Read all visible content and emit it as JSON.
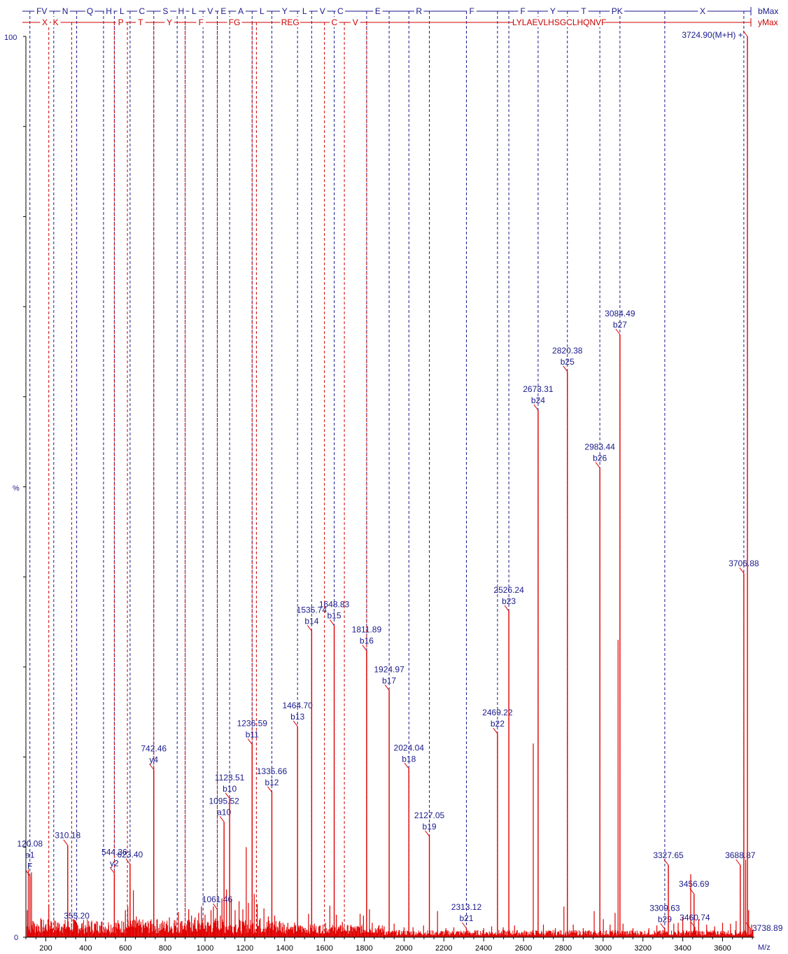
{
  "chart_data": {
    "type": "bar",
    "xlabel": "M/z",
    "ylabel": "%",
    "y_top_label": "100",
    "y_bottom_label": "0",
    "xlim": [
      100,
      3760
    ],
    "ylim": [
      0,
      100
    ],
    "x_ticks": [
      200,
      400,
      600,
      800,
      1000,
      1200,
      1400,
      1600,
      1800,
      2000,
      2200,
      2400,
      2600,
      2800,
      3000,
      3200,
      3400,
      3600
    ],
    "b_ladder": {
      "label": "bMax",
      "color": "#1a1a8c",
      "positions": [
        120.08,
        240,
        355.2,
        490,
        544.36,
        623.4,
        742.46,
        860,
        900,
        990,
        1061.46,
        1123.51,
        1236.59,
        1335.66,
        1464.7,
        1535.74,
        1648.83,
        1811.89,
        1924.97,
        2024.04,
        2127.05,
        2313.12,
        2469.22,
        2526.24,
        2673.31,
        2820.38,
        2983.44,
        3084.49,
        3309.63,
        3706.88
      ],
      "residues": [
        {
          "text": "FV",
          "x": 180
        },
        {
          "text": "N",
          "x": 297
        },
        {
          "text": "Q",
          "x": 422
        },
        {
          "text": "H",
          "x": 517
        },
        {
          "text": "L",
          "x": 583
        },
        {
          "text": "C",
          "x": 683
        },
        {
          "text": "S",
          "x": 801
        },
        {
          "text": "H",
          "x": 880
        },
        {
          "text": "L",
          "x": 945
        },
        {
          "text": "V",
          "x": 1026
        },
        {
          "text": "E",
          "x": 1093
        },
        {
          "text": "A",
          "x": 1180
        },
        {
          "text": "L",
          "x": 1286
        },
        {
          "text": "Y",
          "x": 1400
        },
        {
          "text": "L",
          "x": 1500
        },
        {
          "text": "V",
          "x": 1590
        },
        {
          "text": "C",
          "x": 1680
        },
        {
          "text": "E",
          "x": 1868
        },
        {
          "text": "R",
          "x": 2075
        },
        {
          "text": "F",
          "x": 2340
        },
        {
          "text": "F",
          "x": 2597
        },
        {
          "text": "Y",
          "x": 2747
        },
        {
          "text": "T",
          "x": 2902
        },
        {
          "text": "PK",
          "x": 3070
        },
        {
          "text": "X",
          "x": 3500
        }
      ]
    },
    "y_ladder": {
      "label": "yMax",
      "color": "#cc0000",
      "positions": [
        215,
        330,
        544.36,
        610,
        742.46,
        900,
        1061.46,
        1236.59,
        1258,
        1600,
        1700,
        1811.89
      ],
      "residues": [
        {
          "text": "X",
          "x": 195
        },
        {
          "text": "K",
          "x": 250
        },
        {
          "text": "P",
          "x": 577
        },
        {
          "text": "T",
          "x": 676
        },
        {
          "text": "Y",
          "x": 821
        },
        {
          "text": "F",
          "x": 980
        },
        {
          "text": "FG",
          "x": 1148
        },
        {
          "text": "REG",
          "x": 1428
        },
        {
          "text": "C",
          "x": 1650
        },
        {
          "text": "V",
          "x": 1755
        },
        {
          "text": "LYLAEVLHSGCLHQNVF",
          "x": 2780
        }
      ]
    },
    "labeled_peaks": [
      {
        "mz": 120.08,
        "intensity": 6.8,
        "label": "120.08",
        "ion": "a1",
        "extra": "F"
      },
      {
        "mz": 310.18,
        "intensity": 10.2,
        "label": "310.18"
      },
      {
        "mz": 355.2,
        "intensity": 1.3,
        "label": "355.20"
      },
      {
        "mz": 544.36,
        "intensity": 7.1,
        "label": "544.36",
        "ion": "y2"
      },
      {
        "mz": 623.4,
        "intensity": 8.1,
        "label": "623.40"
      },
      {
        "mz": 742.46,
        "intensity": 18.6,
        "label": "742.46",
        "ion": "y4"
      },
      {
        "mz": 1061.46,
        "intensity": 3.1,
        "label": "1061.46"
      },
      {
        "mz": 1095.52,
        "intensity": 12.8,
        "label": "1095.52",
        "ion": "a10"
      },
      {
        "mz": 1123.51,
        "intensity": 15.4,
        "label": "1123.51",
        "ion": "b10"
      },
      {
        "mz": 1236.59,
        "intensity": 21.4,
        "label": "1236.59",
        "ion": "b11"
      },
      {
        "mz": 1335.66,
        "intensity": 16.1,
        "label": "1335.66",
        "ion": "b12"
      },
      {
        "mz": 1464.7,
        "intensity": 23.4,
        "label": "1464.70",
        "ion": "b13"
      },
      {
        "mz": 1535.74,
        "intensity": 34.0,
        "label": "1535.74",
        "ion": "b14"
      },
      {
        "mz": 1648.83,
        "intensity": 34.6,
        "label": "1648.83",
        "ion": "b15"
      },
      {
        "mz": 1811.89,
        "intensity": 31.8,
        "label": "1811.89",
        "ion": "b16"
      },
      {
        "mz": 1924.97,
        "intensity": 27.4,
        "label": "1924.97",
        "ion": "b17"
      },
      {
        "mz": 2024.04,
        "intensity": 18.7,
        "label": "2024.04",
        "ion": "b18"
      },
      {
        "mz": 2127.05,
        "intensity": 11.2,
        "label": "2127.05",
        "ion": "b19"
      },
      {
        "mz": 2313.12,
        "intensity": 1.0,
        "label": "2313.12",
        "ion": "b21"
      },
      {
        "mz": 2469.22,
        "intensity": 22.6,
        "label": "2469.22",
        "ion": "b22"
      },
      {
        "mz": 2526.24,
        "intensity": 36.2,
        "label": "2526.24",
        "ion": "b23"
      },
      {
        "mz": 2673.31,
        "intensity": 58.5,
        "label": "2673.31",
        "ion": "b24"
      },
      {
        "mz": 2820.38,
        "intensity": 62.8,
        "label": "2820.38",
        "ion": "b25"
      },
      {
        "mz": 2983.44,
        "intensity": 52.1,
        "label": "2983.44",
        "ion": "b26"
      },
      {
        "mz": 3084.49,
        "intensity": 66.9,
        "label": "3084.49",
        "ion": "b27"
      },
      {
        "mz": 3309.63,
        "intensity": 0.9,
        "label": "3309.63",
        "ion": "b29"
      },
      {
        "mz": 3327.65,
        "intensity": 8.0,
        "label": "3327.65"
      },
      {
        "mz": 3456.69,
        "intensity": 4.8,
        "label": "3456.69"
      },
      {
        "mz": 3460.74,
        "intensity": 1.1,
        "label": "3460.74"
      },
      {
        "mz": 3688.87,
        "intensity": 8.0,
        "label": "3688.87"
      },
      {
        "mz": 3706.88,
        "intensity": 40.4,
        "label": "3706.88"
      },
      {
        "mz": 3724.9,
        "intensity": 100,
        "label": "3724.90(M+H) +"
      },
      {
        "mz": 3738.89,
        "intensity": 1.0,
        "label": "3738.89"
      }
    ],
    "other_peaks": [
      [
        107,
        3
      ],
      [
        112,
        7.5
      ],
      [
        128,
        7.2
      ],
      [
        135,
        1.8
      ],
      [
        152,
        1.2
      ],
      [
        175,
        2.1
      ],
      [
        200,
        1.4
      ],
      [
        215,
        3.6
      ],
      [
        226,
        1.8
      ],
      [
        258,
        1.6
      ],
      [
        282,
        1.2
      ],
      [
        340,
        2.0
      ],
      [
        384,
        1.1
      ],
      [
        402,
        0.9
      ],
      [
        446,
        1.1
      ],
      [
        471,
        1.3
      ],
      [
        498,
        1.0
      ],
      [
        516,
        1.3
      ],
      [
        565,
        1.1
      ],
      [
        591,
        1.7
      ],
      [
        600,
        3.0
      ],
      [
        612,
        3.4
      ],
      [
        640,
        5.2
      ],
      [
        655,
        2.3
      ],
      [
        674,
        1.2
      ],
      [
        700,
        1.4
      ],
      [
        725,
        1.8
      ],
      [
        760,
        2.0
      ],
      [
        788,
        1.6
      ],
      [
        805,
        1.5
      ],
      [
        821,
        2.2
      ],
      [
        846,
        1.9
      ],
      [
        866,
        2.8
      ],
      [
        884,
        1.8
      ],
      [
        895,
        1.3
      ],
      [
        918,
        3.1
      ],
      [
        932,
        2.4
      ],
      [
        950,
        2.2
      ],
      [
        968,
        2.7
      ],
      [
        982,
        3.4
      ],
      [
        1000,
        2.5
      ],
      [
        1012,
        1.6
      ],
      [
        1030,
        3.0
      ],
      [
        1042,
        3.4
      ],
      [
        1053,
        2.1
      ],
      [
        1077,
        2.4
      ],
      [
        1085,
        4.3
      ],
      [
        1108,
        5.3
      ],
      [
        1132,
        4.3
      ],
      [
        1151,
        3.0
      ],
      [
        1171,
        4.0
      ],
      [
        1190,
        3.1
      ],
      [
        1207,
        10.0
      ],
      [
        1218,
        3.8
      ],
      [
        1247,
        4.8
      ],
      [
        1262,
        3.7
      ],
      [
        1277,
        2.1
      ],
      [
        1296,
        3.2
      ],
      [
        1318,
        2.3
      ],
      [
        1350,
        2.4
      ],
      [
        1375,
        1.8
      ],
      [
        1398,
        1.4
      ],
      [
        1416,
        1.6
      ],
      [
        1430,
        1.1
      ],
      [
        1450,
        1.6
      ],
      [
        1480,
        1.3
      ],
      [
        1520,
        2.6
      ],
      [
        1550,
        1.5
      ],
      [
        1578,
        1.3
      ],
      [
        1605,
        1.6
      ],
      [
        1627,
        3.5
      ],
      [
        1660,
        2.5
      ],
      [
        1690,
        1.7
      ],
      [
        1742,
        1.1
      ],
      [
        1779,
        2.6
      ],
      [
        1796,
        2.4
      ],
      [
        1826,
        3.1
      ],
      [
        1840,
        1.6
      ],
      [
        1900,
        1.2
      ],
      [
        1950,
        1.5
      ],
      [
        2000,
        1.1
      ],
      [
        2045,
        1.1
      ],
      [
        2098,
        1.3
      ],
      [
        2168,
        2.9
      ],
      [
        2210,
        1.0
      ],
      [
        2250,
        1.1
      ],
      [
        2400,
        1.0
      ],
      [
        2440,
        1.2
      ],
      [
        2498,
        1.1
      ],
      [
        2555,
        1.3
      ],
      [
        2649,
        21.5
      ],
      [
        2700,
        1.4
      ],
      [
        2760,
        1.0
      ],
      [
        2803,
        3.4
      ],
      [
        2850,
        1.4
      ],
      [
        2900,
        1.0
      ],
      [
        2955,
        2.9
      ],
      [
        3001,
        2.0
      ],
      [
        3035,
        1.4
      ],
      [
        3060,
        2.7
      ],
      [
        3075,
        33.0
      ],
      [
        3100,
        1.5
      ],
      [
        3150,
        1.0
      ],
      [
        3230,
        1.0
      ],
      [
        3270,
        1.3
      ],
      [
        3355,
        1.5
      ],
      [
        3377,
        1.6
      ],
      [
        3400,
        2.2
      ],
      [
        3440,
        7.0
      ],
      [
        3480,
        2.0
      ],
      [
        3520,
        1.4
      ],
      [
        3560,
        1.2
      ],
      [
        3600,
        1.6
      ],
      [
        3640,
        1.5
      ],
      [
        3668,
        1.8
      ],
      [
        3716,
        8.6
      ],
      [
        3731,
        3.0
      ],
      [
        3746,
        1.4
      ]
    ]
  }
}
